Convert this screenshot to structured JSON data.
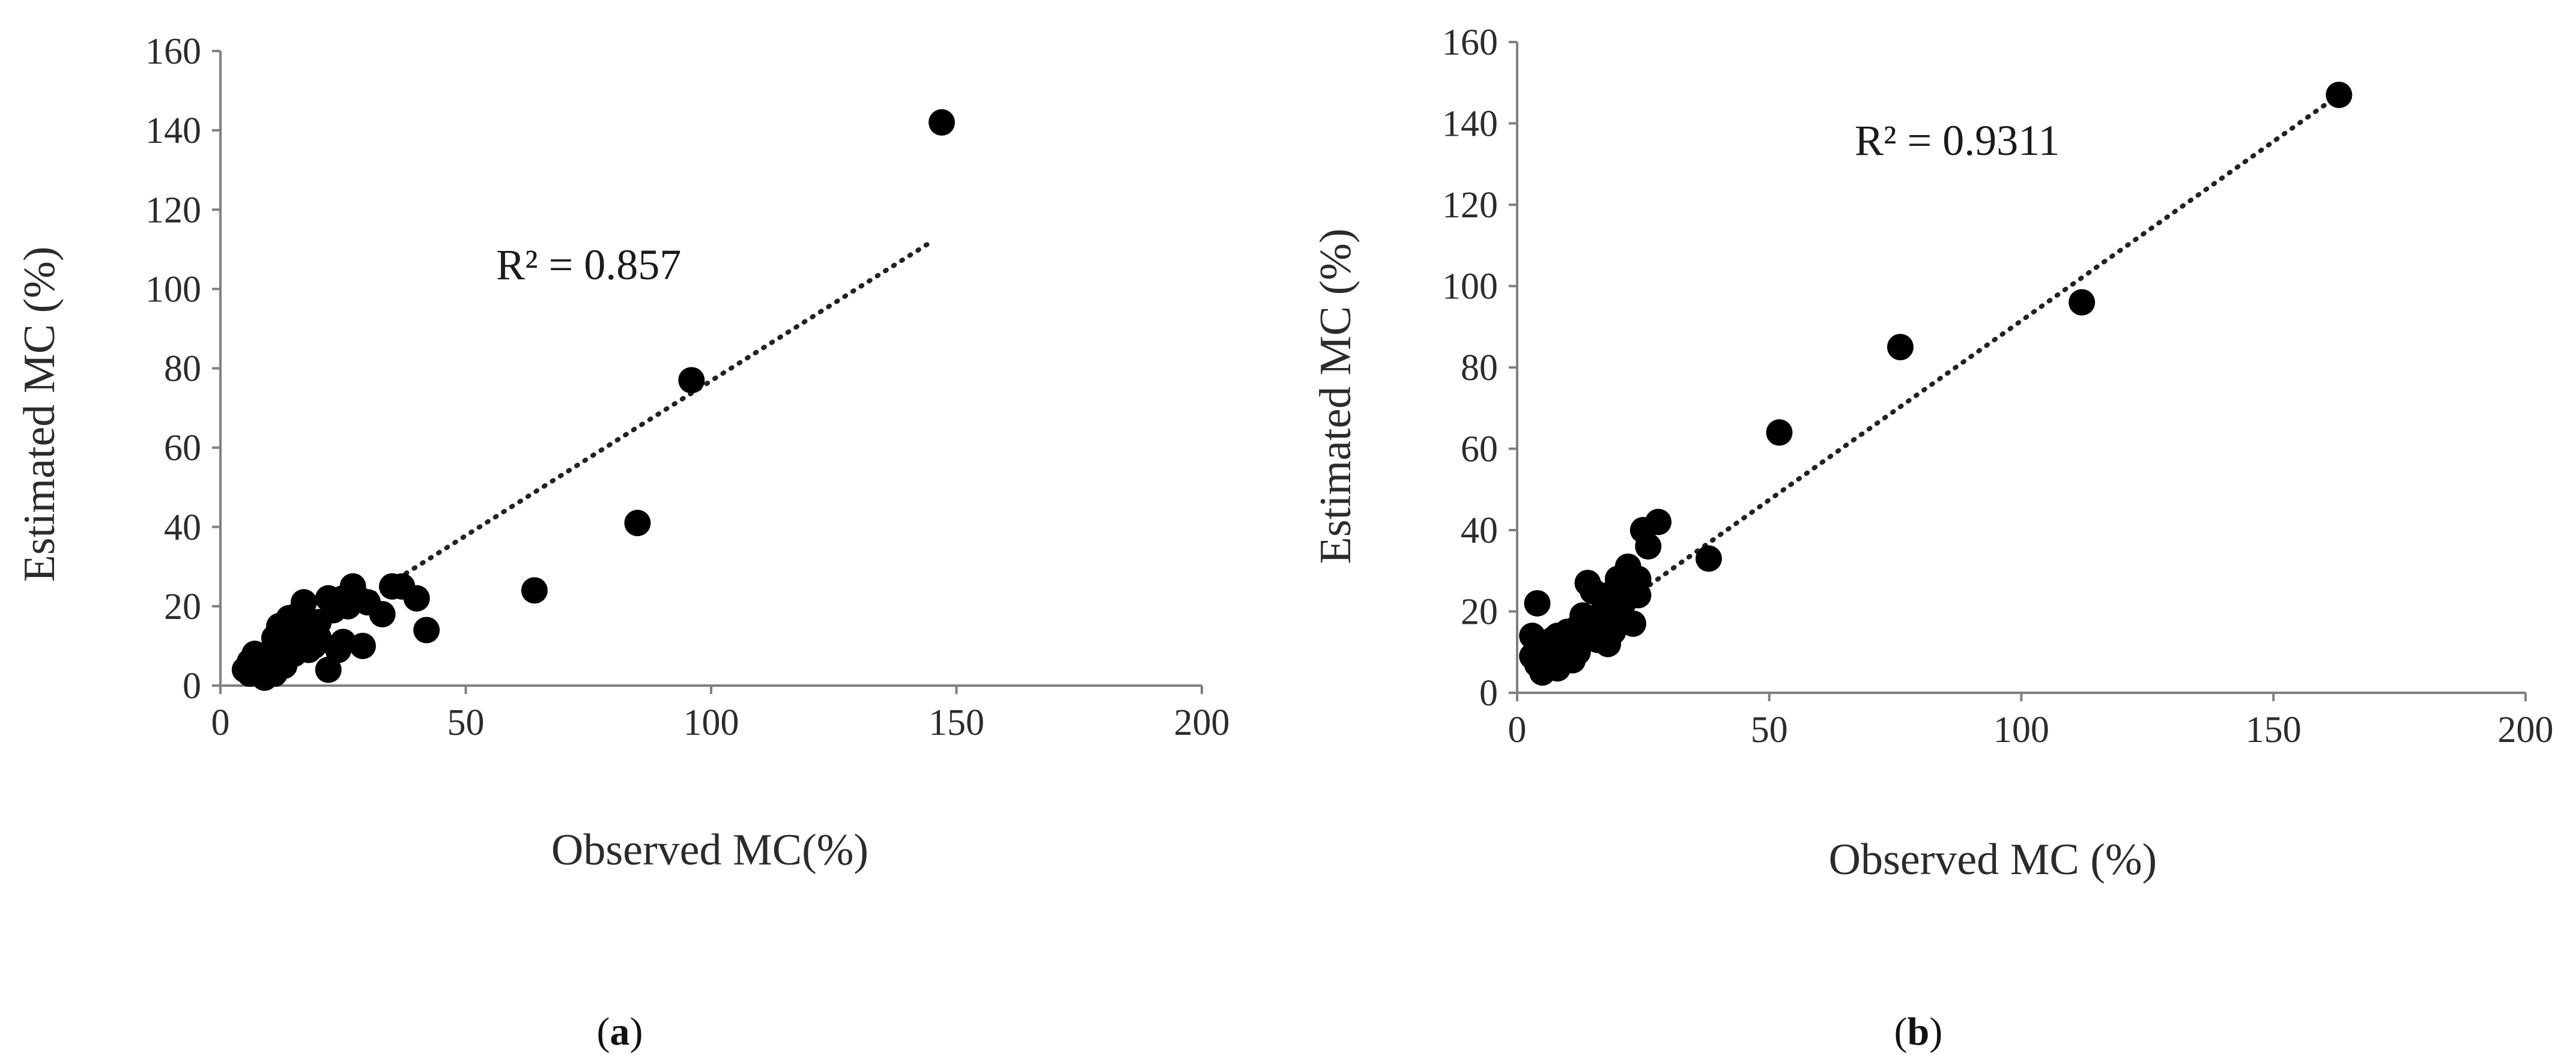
{
  "chart_data": [
    {
      "type": "scatter",
      "panel_label": "a",
      "xlabel": "Observed MC(%)",
      "ylabel": "Estimated MC (%)",
      "xlim": [
        0,
        200
      ],
      "ylim": [
        0,
        160
      ],
      "xticks": [
        0,
        50,
        100,
        150,
        200
      ],
      "yticks": [
        0,
        20,
        40,
        60,
        80,
        100,
        120,
        140,
        160
      ],
      "xtick_labels": [
        "0",
        "50",
        "100",
        "150",
        "200"
      ],
      "ytick_labels": [
        "0",
        "20",
        "40",
        "60",
        "80",
        "100",
        "120",
        "140",
        "160"
      ],
      "annotation": "R² = 0.857",
      "trendline": {
        "style": "dotted",
        "x": [
          8,
          145
        ],
        "y": [
          5,
          112
        ]
      },
      "points": [
        {
          "x": 147,
          "y": 142
        },
        {
          "x": 96,
          "y": 77
        },
        {
          "x": 85,
          "y": 41
        },
        {
          "x": 64,
          "y": 24
        },
        {
          "x": 42,
          "y": 14
        },
        {
          "x": 40,
          "y": 22
        },
        {
          "x": 37,
          "y": 25
        },
        {
          "x": 35,
          "y": 25
        },
        {
          "x": 33,
          "y": 18
        },
        {
          "x": 30,
          "y": 21
        },
        {
          "x": 29,
          "y": 10
        },
        {
          "x": 28,
          "y": 22
        },
        {
          "x": 27,
          "y": 25
        },
        {
          "x": 26,
          "y": 20
        },
        {
          "x": 25,
          "y": 22
        },
        {
          "x": 24,
          "y": 9
        },
        {
          "x": 23,
          "y": 19
        },
        {
          "x": 22,
          "y": 22
        },
        {
          "x": 22,
          "y": 4
        },
        {
          "x": 20,
          "y": 12
        },
        {
          "x": 19,
          "y": 10
        },
        {
          "x": 18,
          "y": 15
        },
        {
          "x": 17,
          "y": 21
        },
        {
          "x": 16,
          "y": 18
        },
        {
          "x": 16,
          "y": 12
        },
        {
          "x": 15,
          "y": 8
        },
        {
          "x": 15,
          "y": 14
        },
        {
          "x": 14,
          "y": 17
        },
        {
          "x": 14,
          "y": 10
        },
        {
          "x": 13,
          "y": 5
        },
        {
          "x": 13,
          "y": 13
        },
        {
          "x": 12,
          "y": 15
        },
        {
          "x": 12,
          "y": 7
        },
        {
          "x": 11,
          "y": 10
        },
        {
          "x": 11,
          "y": 3
        },
        {
          "x": 10,
          "y": 5
        },
        {
          "x": 10,
          "y": 8
        },
        {
          "x": 9,
          "y": 6
        },
        {
          "x": 9,
          "y": 2
        },
        {
          "x": 8,
          "y": 4
        },
        {
          "x": 8,
          "y": 7
        },
        {
          "x": 7,
          "y": 5
        },
        {
          "x": 7,
          "y": 8
        },
        {
          "x": 6,
          "y": 3
        },
        {
          "x": 6,
          "y": 6
        },
        {
          "x": 5,
          "y": 4
        },
        {
          "x": 18,
          "y": 9
        },
        {
          "x": 20,
          "y": 16
        },
        {
          "x": 25,
          "y": 11
        },
        {
          "x": 11,
          "y": 12
        }
      ]
    },
    {
      "type": "scatter",
      "panel_label": "b",
      "xlabel": "Observed MC (%)",
      "ylabel": "Estimated MC (%)",
      "xlim": [
        0,
        200
      ],
      "ylim": [
        0,
        160
      ],
      "xticks": [
        0,
        50,
        100,
        150,
        200
      ],
      "yticks": [
        0,
        20,
        40,
        60,
        80,
        100,
        120,
        140,
        160
      ],
      "xtick_labels": [
        "0",
        "50",
        "100",
        "150",
        "200"
      ],
      "ytick_labels": [
        "0",
        "20",
        "40",
        "60",
        "80",
        "100",
        "120",
        "140",
        "160"
      ],
      "annotation": "R² = 0.9311",
      "trendline": {
        "style": "dotted",
        "x": [
          3,
          163
        ],
        "y": [
          6,
          147
        ]
      },
      "points": [
        {
          "x": 163,
          "y": 147
        },
        {
          "x": 112,
          "y": 96
        },
        {
          "x": 76,
          "y": 85
        },
        {
          "x": 52,
          "y": 64
        },
        {
          "x": 38,
          "y": 33
        },
        {
          "x": 28,
          "y": 42
        },
        {
          "x": 26,
          "y": 36
        },
        {
          "x": 25,
          "y": 40
        },
        {
          "x": 24,
          "y": 28
        },
        {
          "x": 23,
          "y": 25
        },
        {
          "x": 23,
          "y": 17
        },
        {
          "x": 22,
          "y": 31
        },
        {
          "x": 21,
          "y": 22
        },
        {
          "x": 20,
          "y": 28
        },
        {
          "x": 19,
          "y": 15
        },
        {
          "x": 18,
          "y": 24
        },
        {
          "x": 18,
          "y": 12
        },
        {
          "x": 17,
          "y": 20
        },
        {
          "x": 16,
          "y": 17
        },
        {
          "x": 15,
          "y": 25
        },
        {
          "x": 14,
          "y": 27
        },
        {
          "x": 14,
          "y": 14
        },
        {
          "x": 13,
          "y": 19
        },
        {
          "x": 12,
          "y": 16
        },
        {
          "x": 12,
          "y": 10
        },
        {
          "x": 11,
          "y": 13
        },
        {
          "x": 11,
          "y": 8
        },
        {
          "x": 10,
          "y": 15
        },
        {
          "x": 10,
          "y": 11
        },
        {
          "x": 9,
          "y": 12
        },
        {
          "x": 9,
          "y": 8
        },
        {
          "x": 8,
          "y": 14
        },
        {
          "x": 8,
          "y": 6
        },
        {
          "x": 7,
          "y": 10
        },
        {
          "x": 7,
          "y": 13
        },
        {
          "x": 6,
          "y": 7
        },
        {
          "x": 6,
          "y": 12
        },
        {
          "x": 5,
          "y": 9
        },
        {
          "x": 5,
          "y": 5
        },
        {
          "x": 4,
          "y": 22
        },
        {
          "x": 4,
          "y": 11
        },
        {
          "x": 4,
          "y": 7
        },
        {
          "x": 3,
          "y": 14
        },
        {
          "x": 3,
          "y": 9
        },
        {
          "x": 20,
          "y": 19
        },
        {
          "x": 24,
          "y": 24
        },
        {
          "x": 16,
          "y": 13
        }
      ]
    }
  ]
}
